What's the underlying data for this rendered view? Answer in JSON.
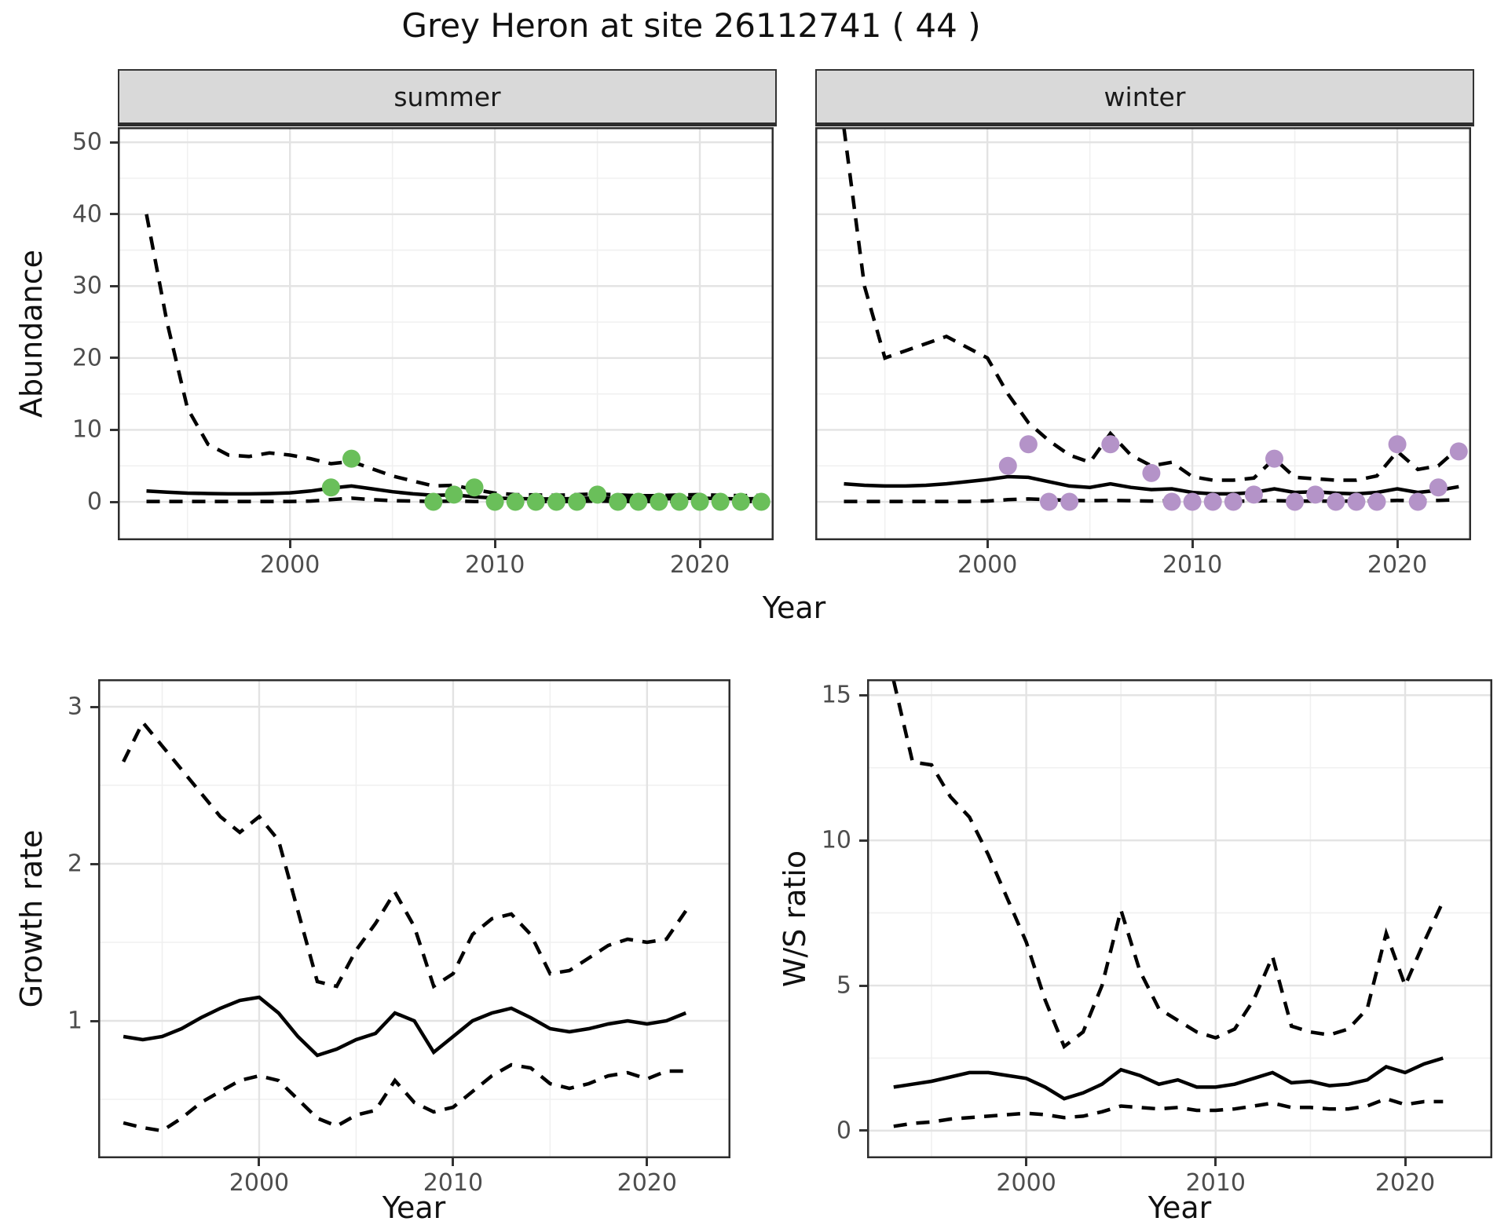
{
  "title": "Grey Heron at site 26112741 ( 44 )",
  "colors": {
    "summer_point": "#6abf5a",
    "winter_point": "#b493c8",
    "line": "#000000",
    "grid_major": "#e3e3e3",
    "grid_minor": "#f0f0f0",
    "strip_bg": "#d9d9d9",
    "panel_border": "#2e2e2e",
    "tick_label": "#4d4d4d"
  },
  "chart_data": [
    {
      "name": "abundance-summer",
      "type": "line",
      "strip_label": "summer",
      "xlabel": "Year",
      "ylabel": "Abundance",
      "legend_position": "none",
      "grid": true,
      "xlim": [
        1991.6,
        2023.6
      ],
      "ylim": [
        -5.35,
        52.1
      ],
      "xticks": [
        2000,
        2010,
        2020
      ],
      "xminor": [
        1995,
        2005,
        2015
      ],
      "yticks": [
        0,
        10,
        20,
        30,
        40,
        50
      ],
      "yminor": [
        5,
        15,
        25,
        35,
        45
      ],
      "x": [
        1993,
        1994,
        1995,
        1996,
        1997,
        1998,
        1999,
        2000,
        2001,
        2002,
        2003,
        2004,
        2005,
        2006,
        2007,
        2008,
        2009,
        2010,
        2011,
        2012,
        2013,
        2014,
        2015,
        2016,
        2017,
        2018,
        2019,
        2020,
        2021,
        2022,
        2023
      ],
      "series": [
        {
          "name": "mean",
          "style": "solid",
          "values": [
            1.5,
            1.35,
            1.2,
            1.15,
            1.1,
            1.1,
            1.15,
            1.25,
            1.5,
            1.9,
            2.2,
            1.8,
            1.4,
            1.1,
            0.9,
            0.95,
            0.7,
            0.5,
            0.45,
            0.4,
            0.4,
            0.45,
            0.55,
            0.45,
            0.4,
            0.4,
            0.45,
            0.5,
            0.45,
            0.4,
            0.45
          ]
        },
        {
          "name": "upper-ci",
          "style": "dashed",
          "values": [
            40,
            25,
            13,
            8,
            6.5,
            6.3,
            6.8,
            6.5,
            6.0,
            5.3,
            5.6,
            4.6,
            3.6,
            2.9,
            2.2,
            2.3,
            1.7,
            1.2,
            1.0,
            0.95,
            0.9,
            1.0,
            1.1,
            0.95,
            0.85,
            0.85,
            0.95,
            1.0,
            0.9,
            0.85,
            0.9
          ]
        },
        {
          "name": "lower-ci",
          "style": "dashed",
          "values": [
            0.05,
            0.05,
            0.05,
            0.05,
            0.05,
            0.05,
            0.05,
            0.05,
            0.1,
            0.3,
            0.5,
            0.3,
            0.15,
            0.1,
            0.05,
            0.1,
            0.05,
            0.05,
            0.05,
            0.05,
            0.05,
            0.05,
            0.1,
            0.05,
            0.05,
            0.05,
            0.05,
            0.05,
            0.05,
            0.05,
            0.05
          ]
        }
      ],
      "points": {
        "name": "observed-summer",
        "color_key": "summer_point",
        "data": [
          [
            2002,
            2
          ],
          [
            2003,
            6
          ],
          [
            2007,
            0
          ],
          [
            2008,
            1
          ],
          [
            2009,
            2
          ],
          [
            2010,
            0
          ],
          [
            2011,
            0
          ],
          [
            2012,
            0
          ],
          [
            2013,
            0
          ],
          [
            2014,
            0
          ],
          [
            2015,
            1
          ],
          [
            2016,
            0
          ],
          [
            2017,
            0
          ],
          [
            2018,
            0
          ],
          [
            2019,
            0
          ],
          [
            2020,
            0
          ],
          [
            2021,
            0
          ],
          [
            2022,
            0
          ],
          [
            2023,
            0
          ]
        ]
      }
    },
    {
      "name": "abundance-winter",
      "type": "line",
      "strip_label": "winter",
      "xlabel": "Year",
      "ylabel": "Abundance",
      "legend_position": "none",
      "grid": true,
      "xlim": [
        1991.6,
        2023.6
      ],
      "ylim": [
        -5.35,
        52.1
      ],
      "xticks": [
        2000,
        2010,
        2020
      ],
      "xminor": [
        1995,
        2005,
        2015
      ],
      "yticks": [
        0,
        10,
        20,
        30,
        40,
        50
      ],
      "yminor": [
        5,
        15,
        25,
        35,
        45
      ],
      "x": [
        1993,
        1994,
        1995,
        1996,
        1997,
        1998,
        1999,
        2000,
        2001,
        2002,
        2003,
        2004,
        2005,
        2006,
        2007,
        2008,
        2009,
        2010,
        2011,
        2012,
        2013,
        2014,
        2015,
        2016,
        2017,
        2018,
        2019,
        2020,
        2021,
        2022,
        2023
      ],
      "series": [
        {
          "name": "mean",
          "style": "solid",
          "values": [
            2.5,
            2.3,
            2.2,
            2.2,
            2.3,
            2.5,
            2.8,
            3.1,
            3.5,
            3.4,
            2.8,
            2.2,
            2.0,
            2.5,
            2.0,
            1.7,
            1.8,
            1.3,
            1.1,
            1.1,
            1.3,
            1.8,
            1.3,
            1.4,
            1.2,
            1.1,
            1.3,
            1.8,
            1.3,
            1.6,
            2.1
          ]
        },
        {
          "name": "upper-ci",
          "style": "dashed",
          "values": [
            52,
            30,
            20,
            21,
            22,
            23,
            21.5,
            20,
            15,
            11,
            8.5,
            6.5,
            5.5,
            9.5,
            6.5,
            5.0,
            5.5,
            3.5,
            3.0,
            3.0,
            3.3,
            6.0,
            3.4,
            3.2,
            3.0,
            3.0,
            3.6,
            7.0,
            4.5,
            5.0,
            7.5
          ]
        },
        {
          "name": "lower-ci",
          "style": "dashed",
          "values": [
            0.05,
            0.05,
            0.05,
            0.05,
            0.05,
            0.05,
            0.05,
            0.1,
            0.3,
            0.4,
            0.3,
            0.2,
            0.15,
            0.2,
            0.15,
            0.1,
            0.15,
            0.1,
            0.1,
            0.1,
            0.1,
            0.15,
            0.1,
            0.1,
            0.1,
            0.1,
            0.1,
            0.2,
            0.15,
            0.2,
            0.3
          ]
        }
      ],
      "points": {
        "name": "observed-winter",
        "color_key": "winter_point",
        "data": [
          [
            2001,
            5
          ],
          [
            2002,
            8
          ],
          [
            2003,
            0
          ],
          [
            2004,
            0
          ],
          [
            2006,
            8
          ],
          [
            2008,
            4
          ],
          [
            2009,
            0
          ],
          [
            2010,
            0
          ],
          [
            2011,
            0
          ],
          [
            2012,
            0
          ],
          [
            2013,
            1
          ],
          [
            2014,
            6
          ],
          [
            2015,
            0
          ],
          [
            2016,
            1
          ],
          [
            2017,
            0
          ],
          [
            2018,
            0
          ],
          [
            2019,
            0
          ],
          [
            2020,
            8
          ],
          [
            2021,
            0
          ],
          [
            2022,
            2
          ],
          [
            2023,
            7
          ]
        ]
      }
    },
    {
      "name": "growth-rate",
      "type": "line",
      "strip_label": "",
      "xlabel": "Year",
      "ylabel": "Growth rate",
      "legend_position": "none",
      "grid": true,
      "xlim": [
        1991.7,
        2024.3
      ],
      "ylim": [
        0.125,
        3.175
      ],
      "xticks": [
        2000,
        2010,
        2020
      ],
      "xminor": [
        1995,
        2005,
        2015
      ],
      "yticks": [
        1,
        2,
        3
      ],
      "yminor": [
        0.5,
        1.5,
        2.5
      ],
      "x": [
        1993,
        1994,
        1995,
        1996,
        1997,
        1998,
        1999,
        2000,
        2001,
        2002,
        2003,
        2004,
        2005,
        2006,
        2007,
        2008,
        2009,
        2010,
        2011,
        2012,
        2013,
        2014,
        2015,
        2016,
        2017,
        2018,
        2019,
        2020,
        2021,
        2022
      ],
      "series": [
        {
          "name": "mean",
          "style": "solid",
          "values": [
            0.9,
            0.88,
            0.9,
            0.95,
            1.02,
            1.08,
            1.13,
            1.15,
            1.05,
            0.9,
            0.78,
            0.82,
            0.88,
            0.92,
            1.05,
            1.0,
            0.8,
            0.9,
            1.0,
            1.05,
            1.08,
            1.02,
            0.95,
            0.93,
            0.95,
            0.98,
            1.0,
            0.98,
            1.0,
            1.05
          ]
        },
        {
          "name": "upper-ci",
          "style": "dashed",
          "values": [
            2.65,
            2.9,
            2.75,
            2.6,
            2.45,
            2.3,
            2.2,
            2.3,
            2.15,
            1.7,
            1.25,
            1.22,
            1.45,
            1.62,
            1.82,
            1.6,
            1.22,
            1.3,
            1.55,
            1.65,
            1.68,
            1.55,
            1.3,
            1.32,
            1.4,
            1.48,
            1.52,
            1.5,
            1.52,
            1.7
          ]
        },
        {
          "name": "lower-ci",
          "style": "dashed",
          "values": [
            0.35,
            0.32,
            0.3,
            0.38,
            0.48,
            0.55,
            0.62,
            0.65,
            0.62,
            0.5,
            0.38,
            0.33,
            0.4,
            0.43,
            0.62,
            0.48,
            0.42,
            0.45,
            0.55,
            0.65,
            0.72,
            0.7,
            0.6,
            0.57,
            0.6,
            0.65,
            0.67,
            0.63,
            0.68,
            0.68
          ]
        }
      ],
      "points": null
    },
    {
      "name": "ws-ratio",
      "type": "line",
      "strip_label": "",
      "xlabel": "Year",
      "ylabel": "W/S ratio",
      "legend_position": "none",
      "grid": true,
      "xlim": [
        1991.6,
        2024.6
      ],
      "ylim": [
        -0.95,
        15.55
      ],
      "xticks": [
        2000,
        2010,
        2020
      ],
      "xminor": [
        1995,
        2005,
        2015
      ],
      "yticks": [
        0,
        5,
        10,
        15
      ],
      "yminor": [
        2.5,
        7.5,
        12.5
      ],
      "x": [
        1993,
        1994,
        1995,
        1996,
        1997,
        1998,
        1999,
        2000,
        2001,
        2002,
        2003,
        2004,
        2005,
        2006,
        2007,
        2008,
        2009,
        2010,
        2011,
        2012,
        2013,
        2014,
        2015,
        2016,
        2017,
        2018,
        2019,
        2020,
        2021,
        2022
      ],
      "series": [
        {
          "name": "mean",
          "style": "solid",
          "values": [
            1.5,
            1.6,
            1.7,
            1.85,
            2.0,
            2.0,
            1.9,
            1.8,
            1.5,
            1.1,
            1.3,
            1.6,
            2.1,
            1.9,
            1.6,
            1.75,
            1.5,
            1.5,
            1.6,
            1.8,
            2.0,
            1.65,
            1.7,
            1.55,
            1.6,
            1.75,
            2.2,
            2.0,
            2.3,
            2.5
          ]
        },
        {
          "name": "upper-ci",
          "style": "dashed",
          "values": [
            15.5,
            12.7,
            12.6,
            11.5,
            10.8,
            9.5,
            8.0,
            6.5,
            4.5,
            2.9,
            3.4,
            5.0,
            7.6,
            5.5,
            4.2,
            3.8,
            3.4,
            3.2,
            3.5,
            4.5,
            6.0,
            3.6,
            3.4,
            3.3,
            3.5,
            4.2,
            6.8,
            5.0,
            6.5,
            7.9
          ]
        },
        {
          "name": "lower-ci",
          "style": "dashed",
          "values": [
            0.15,
            0.25,
            0.3,
            0.4,
            0.45,
            0.5,
            0.55,
            0.6,
            0.55,
            0.45,
            0.5,
            0.65,
            0.85,
            0.8,
            0.75,
            0.8,
            0.7,
            0.7,
            0.75,
            0.85,
            0.95,
            0.8,
            0.8,
            0.75,
            0.75,
            0.85,
            1.1,
            0.9,
            1.0,
            1.0
          ]
        }
      ],
      "points": null
    }
  ]
}
